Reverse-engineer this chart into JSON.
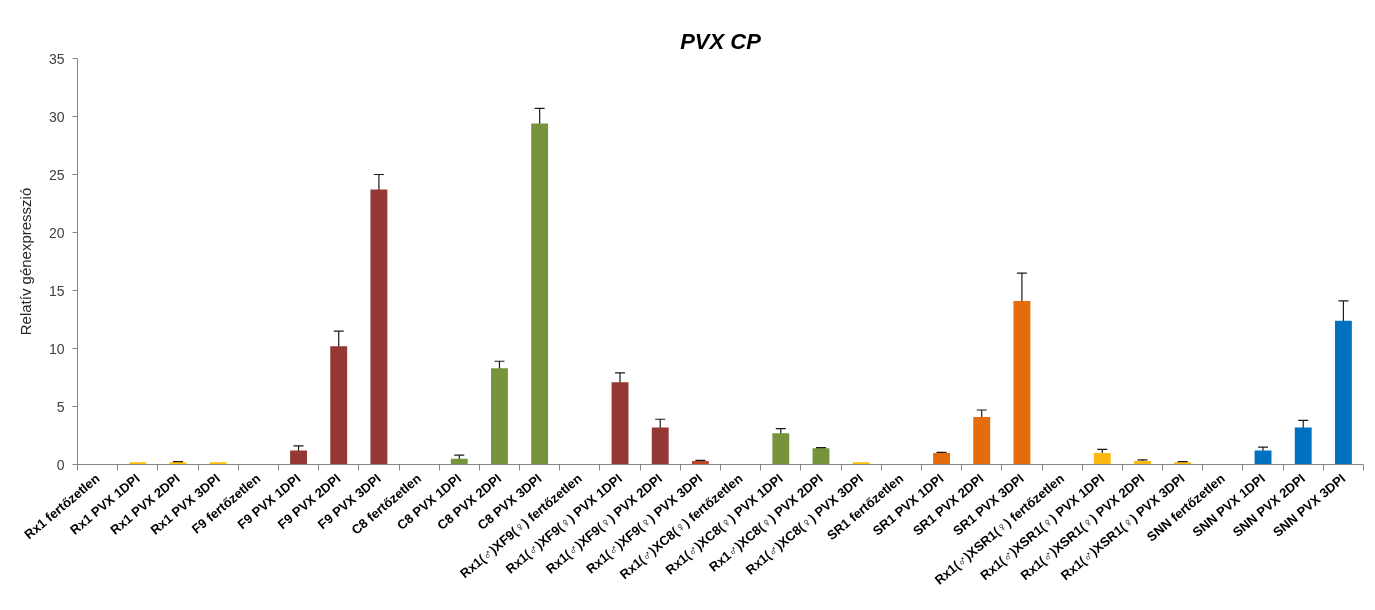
{
  "chart_data": {
    "type": "bar",
    "title": "PVX CP",
    "ylabel": "Relatív génexpresszió",
    "categories": [
      "Rx1 fertőzetlen",
      "Rx1 PVX 1DPI",
      "Rx1 PVX 2DPI",
      "Rx1 PVX 3DPI",
      "F9 fertőzetlen",
      "F9 PVX 1DPI",
      "F9 PVX 2DPI",
      "F9 PVX 3DPI",
      "C8 fertőzetlen",
      "C8 PVX 1DPI",
      "C8 PVX 2DPI",
      "C8 PVX 3DPI",
      "Rx1(♂)XF9(♀) fertőzetlen",
      "Rx1(♂)XF9(♀) PVX 1DPI",
      "Rx1(♂)XF9(♀) PVX 2DPI",
      "Rx1(♂)XF9(♀) PVX 3DPI",
      "Rx1(♂)XC8(♀) fertőzetlen",
      "Rx1(♂)XC8(♀) PVX 1DPI",
      "Rx1♂)XC8(♀) PVX 2DPI",
      "Rx1(♂)XC8(♀) PVX 3DPI",
      "SR1 fertőzetlen",
      "SR1 PVX 1DPI",
      "SR1 PVX 2DPI",
      "SR1 PVX 3DPI",
      "Rx1(♂)XSR1(♀) fertőzetlen",
      "Rx1(♂)XSR1(♀) PVX 1DPI",
      "Rx1(♂)XSR1(♀) PVX 2DPI",
      "Rx1(♂)XSR1(♀) PVX 3DPI",
      "SNN fertőzetlen",
      "SNN PVX 1DPI",
      "SNN PVX 2DPI",
      "SNN PVX 3DPI"
    ],
    "values": [
      null,
      0.2,
      0.2,
      0.2,
      null,
      1.2,
      10.2,
      23.7,
      null,
      0.5,
      8.3,
      29.4,
      null,
      7.1,
      3.2,
      0.3,
      null,
      2.7,
      1.4,
      0.2,
      null,
      1.0,
      4.1,
      14.1,
      null,
      1.0,
      0.3,
      0.2,
      null,
      1.2,
      3.2,
      12.4
    ],
    "errors": [
      null,
      null,
      0.05,
      null,
      null,
      0.4,
      1.3,
      1.3,
      null,
      0.3,
      0.6,
      1.3,
      null,
      0.8,
      0.7,
      0.05,
      null,
      0.4,
      0.05,
      null,
      null,
      0.05,
      0.6,
      2.4,
      null,
      0.3,
      0.1,
      0.05,
      null,
      0.3,
      0.6,
      1.7
    ],
    "colors": [
      "#ffc000",
      "#ffc000",
      "#ffc000",
      "#ffc000",
      "#953735",
      "#953735",
      "#953735",
      "#953735",
      "#77933c",
      "#77933c",
      "#77933c",
      "#77933c",
      "#953735",
      "#953735",
      "#953735",
      "#c0452a",
      "#77933c",
      "#77933c",
      "#77933c",
      "#f5c000",
      "#e46c0a",
      "#e46c0a",
      "#e46c0a",
      "#e46c0a",
      "#fdb813",
      "#fdb813",
      "#fdb813",
      "#fdb813",
      "#0070c0",
      "#0070c0",
      "#0070c0",
      "#0070c0"
    ],
    "ylim": [
      0,
      35
    ],
    "yticks": [
      0,
      5,
      10,
      15,
      20,
      25,
      30,
      35
    ],
    "grid": false
  }
}
